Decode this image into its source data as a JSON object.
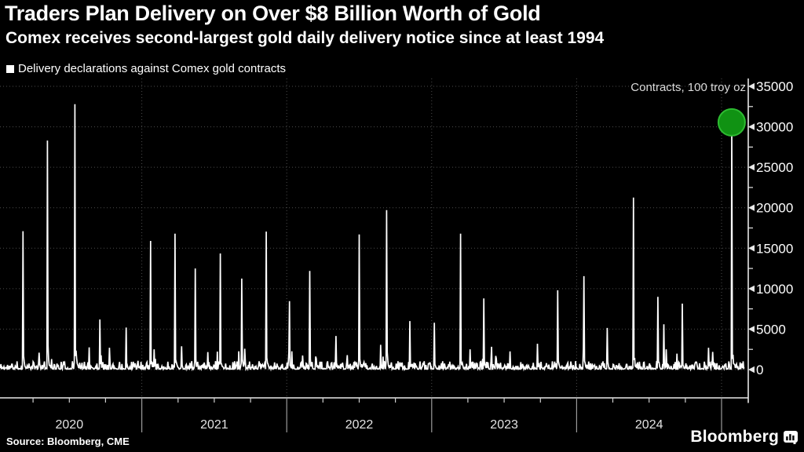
{
  "header": {
    "title": "Traders Plan Delivery on Over $8 Billion Worth of Gold",
    "subtitle": "Comex receives second-largest gold daily delivery notice since at least 1994"
  },
  "legend": {
    "label": "Delivery declarations against Comex gold contracts",
    "swatch_color": "#ffffff"
  },
  "footer": {
    "source": "Source: Bloomberg, CME",
    "logo": "Bloomberg"
  },
  "colors": {
    "background": "#000000",
    "line": "#ffffff",
    "grid": "#4c4c4c",
    "axis": "#e8e8e8",
    "text": "#ffffff",
    "muted_text": "#dcdcdc",
    "year_label": "#e3e3e3",
    "separator": "#9b9b9b",
    "minor_tick": "#cfcfcf",
    "highlight_fill": "#109213",
    "highlight_stroke": "#2dbb31"
  },
  "chart_data": {
    "type": "line",
    "title": "Delivery declarations against Comex gold contracts",
    "unit": "Contracts, 100 troy oz",
    "xlabel": "",
    "ylabel": "Contracts, 100 troy oz",
    "x_range": [
      2020.02,
      2025.157
    ],
    "ylim": [
      0,
      35000
    ],
    "y_ticks": [
      0,
      5000,
      10000,
      15000,
      20000,
      25000,
      30000,
      35000
    ],
    "y_minor_step": 2500,
    "x_year_labels": [
      "2020",
      "2021",
      "2022",
      "2023",
      "2024"
    ],
    "x_year_boundaries": [
      2021,
      2022,
      2023,
      2024,
      2025
    ],
    "grid": "dotted horizontal every 5000; dotted vertical at year boundaries",
    "legend_position": "top-left",
    "peaks": [
      {
        "t": 2020.18,
        "v": 17100
      },
      {
        "t": 2020.35,
        "v": 28300
      },
      {
        "t": 2020.54,
        "v": 32800
      },
      {
        "t": 2020.71,
        "v": 6200
      },
      {
        "t": 2020.89,
        "v": 5200
      },
      {
        "t": 2021.06,
        "v": 15900
      },
      {
        "t": 2021.23,
        "v": 16800
      },
      {
        "t": 2021.37,
        "v": 12500
      },
      {
        "t": 2021.54,
        "v": 14350
      },
      {
        "t": 2021.69,
        "v": 11250
      },
      {
        "t": 2021.86,
        "v": 17050
      },
      {
        "t": 2022.02,
        "v": 8450
      },
      {
        "t": 2022.16,
        "v": 12200
      },
      {
        "t": 2022.34,
        "v": 4150
      },
      {
        "t": 2022.5,
        "v": 16700
      },
      {
        "t": 2022.69,
        "v": 19700
      },
      {
        "t": 2022.85,
        "v": 6000
      },
      {
        "t": 2023.02,
        "v": 5800
      },
      {
        "t": 2023.2,
        "v": 16800
      },
      {
        "t": 2023.36,
        "v": 8800
      },
      {
        "t": 2023.54,
        "v": 2250
      },
      {
        "t": 2023.73,
        "v": 3200
      },
      {
        "t": 2023.87,
        "v": 9800
      },
      {
        "t": 2024.05,
        "v": 11550
      },
      {
        "t": 2024.21,
        "v": 5150
      },
      {
        "t": 2024.39,
        "v": 21250
      },
      {
        "t": 2024.56,
        "v": 9000
      },
      {
        "t": 2024.6,
        "v": 5600
      },
      {
        "t": 2024.73,
        "v": 8150
      },
      {
        "t": 2024.91,
        "v": 2700
      }
    ],
    "highlight": {
      "t": 2025.07,
      "v": 30550,
      "radius": 17
    },
    "noise": {
      "seed": 11,
      "samples": 1250,
      "floor": 60,
      "base_amp": 1000,
      "base_power": 3,
      "bump_chance": 0.025,
      "bump_min": 700,
      "bump_max": 2800,
      "decay_fraction": 0.13,
      "decay_span": 9
    }
  }
}
